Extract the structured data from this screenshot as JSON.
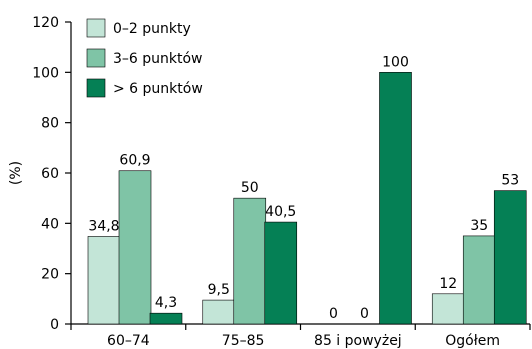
{
  "chart_data": {
    "type": "bar",
    "categories": [
      "60–74",
      "75–85",
      "85 i powyżej",
      "Ogółem"
    ],
    "series": [
      {
        "name": "0–2 punkty",
        "values": [
          34.8,
          9.5,
          0,
          12
        ],
        "labels": [
          "34,8",
          "9,5",
          "0",
          "12"
        ],
        "color": "#c3e5d7"
      },
      {
        "name": "3–6 punktów",
        "values": [
          60.9,
          50,
          0,
          35
        ],
        "labels": [
          "60,9",
          "50",
          "0",
          "35"
        ],
        "color": "#7fc4a6"
      },
      {
        "name": "> 6 punktów",
        "values": [
          4.3,
          40.5,
          100,
          53
        ],
        "labels": [
          "4,3",
          "40,5",
          "100",
          "53"
        ],
        "color": "#058055"
      }
    ],
    "ylabel": "(%)",
    "xlabel": "",
    "ylim": [
      0,
      120
    ],
    "yticks": [
      0,
      20,
      40,
      60,
      80,
      100,
      120
    ],
    "grid": false,
    "legend_position": "top-left"
  }
}
